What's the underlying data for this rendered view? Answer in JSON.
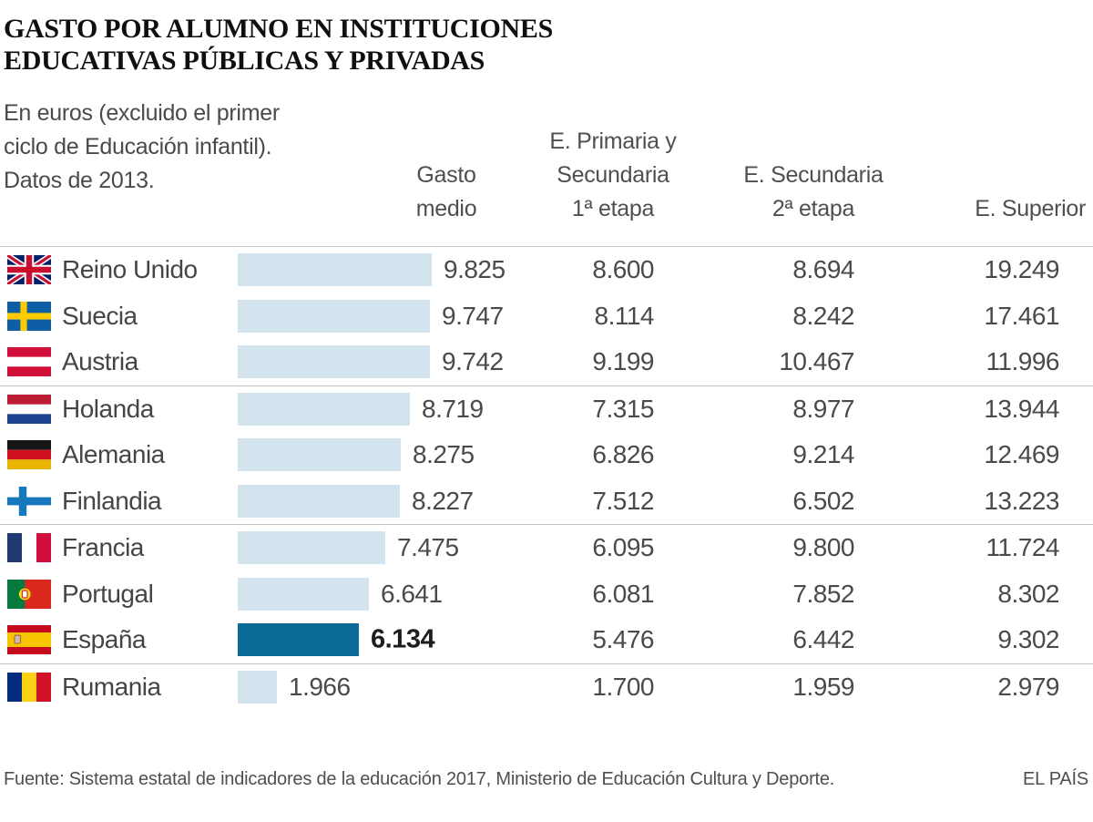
{
  "title": {
    "line1": "GASTO POR ALUMNO EN INSTITUCIONES",
    "line2": "EDUCATIVAS PÚBLICAS Y PRIVADAS"
  },
  "subtitle": {
    "line1": "En euros (excluido el primer",
    "line2": "ciclo de Educación infantil).",
    "line3": "Datos de 2013."
  },
  "columns": {
    "col1": {
      "line1": "Gasto",
      "line2": "medio"
    },
    "col2": {
      "line1": "E. Primaria y",
      "line2": "Secundaria",
      "line3": "1ª etapa"
    },
    "col3": {
      "line1": "E. Secundaria",
      "line2": "2ª etapa"
    },
    "col4": {
      "line1": "E. Superior"
    }
  },
  "rows": [
    {
      "country": "Reino Unido",
      "flag": "reino-unido",
      "gasto_medio": "9.825",
      "primaria_secundaria1": "8.600",
      "secundaria2": "8.694",
      "superior": "19.249",
      "bar_value": 9825,
      "highlight": false
    },
    {
      "country": "Suecia",
      "flag": "suecia",
      "gasto_medio": "9.747",
      "primaria_secundaria1": "8.114",
      "secundaria2": "8.242",
      "superior": "17.461",
      "bar_value": 9747,
      "highlight": false
    },
    {
      "country": "Austria",
      "flag": "austria",
      "gasto_medio": "9.742",
      "primaria_secundaria1": "9.199",
      "secundaria2": "10.467",
      "superior": "11.996",
      "bar_value": 9742,
      "highlight": false
    },
    {
      "country": "Holanda",
      "flag": "holanda",
      "gasto_medio": "8.719",
      "primaria_secundaria1": "7.315",
      "secundaria2": "8.977",
      "superior": "13.944",
      "bar_value": 8719,
      "highlight": false
    },
    {
      "country": "Alemania",
      "flag": "alemania",
      "gasto_medio": "8.275",
      "primaria_secundaria1": "6.826",
      "secundaria2": "9.214",
      "superior": "12.469",
      "bar_value": 8275,
      "highlight": false
    },
    {
      "country": "Finlandia",
      "flag": "finlandia",
      "gasto_medio": "8.227",
      "primaria_secundaria1": "7.512",
      "secundaria2": "6.502",
      "superior": "13.223",
      "bar_value": 8227,
      "highlight": false
    },
    {
      "country": "Francia",
      "flag": "francia",
      "gasto_medio": "7.475",
      "primaria_secundaria1": "6.095",
      "secundaria2": "9.800",
      "superior": "11.724",
      "bar_value": 7475,
      "highlight": false
    },
    {
      "country": "Portugal",
      "flag": "portugal",
      "gasto_medio": "6.641",
      "primaria_secundaria1": "6.081",
      "secundaria2": "7.852",
      "superior": "8.302",
      "bar_value": 6641,
      "highlight": false
    },
    {
      "country": "España",
      "flag": "espana",
      "gasto_medio": "6.134",
      "primaria_secundaria1": "5.476",
      "secundaria2": "6.442",
      "superior": "9.302",
      "bar_value": 6134,
      "highlight": true
    },
    {
      "country": "Rumania",
      "flag": "rumania",
      "gasto_medio": "1.966",
      "primaria_secundaria1": "1.700",
      "secundaria2": "1.959",
      "superior": "2.979",
      "bar_value": 1966,
      "highlight": false
    }
  ],
  "row_groups": [
    [
      0,
      1,
      2
    ],
    [
      3,
      4,
      5
    ],
    [
      6,
      7,
      8
    ],
    [
      9
    ]
  ],
  "colors": {
    "bar": "#d4e4ee",
    "bar_highlight": "#0c6a97",
    "separator": "#c4c4c4",
    "text": "#4a4a4a",
    "highlight_text": "#1d1d1d"
  },
  "footer": {
    "source": "Fuente: Sistema estatal de indicadores de la educación 2017, Ministerio de Educación Cultura y Deporte.",
    "credit": "EL PAÍS"
  },
  "chart_data": {
    "type": "bar",
    "title": "GASTO POR ALUMNO EN INSTITUCIONES EDUCATIVAS PÚBLICAS Y PRIVADAS",
    "subtitle": "En euros (excluido el primer ciclo de Educación infantil). Datos de 2013.",
    "categories": [
      "Reino Unido",
      "Suecia",
      "Austria",
      "Holanda",
      "Alemania",
      "Finlandia",
      "Francia",
      "Portugal",
      "España",
      "Rumania"
    ],
    "series": [
      {
        "name": "Gasto medio",
        "values": [
          9825,
          9747,
          9742,
          8719,
          8275,
          8227,
          7475,
          6641,
          6134,
          1966
        ]
      },
      {
        "name": "E. Primaria y Secundaria 1ª etapa",
        "values": [
          8600,
          8114,
          9199,
          7315,
          6826,
          7512,
          6095,
          6081,
          5476,
          1700
        ]
      },
      {
        "name": "E. Secundaria 2ª etapa",
        "values": [
          8694,
          8242,
          10467,
          8977,
          9214,
          6502,
          9800,
          7852,
          6442,
          1959
        ]
      },
      {
        "name": "E. Superior",
        "values": [
          19249,
          17461,
          11996,
          13944,
          12469,
          13223,
          11724,
          8302,
          9302,
          2979
        ]
      }
    ],
    "bar_series": "Gasto medio",
    "highlight_category": "España",
    "orientation": "horizontal",
    "xlim": [
      0,
      9825
    ],
    "grid": false,
    "legend_position": "none",
    "value_format": "thousands-dot"
  }
}
